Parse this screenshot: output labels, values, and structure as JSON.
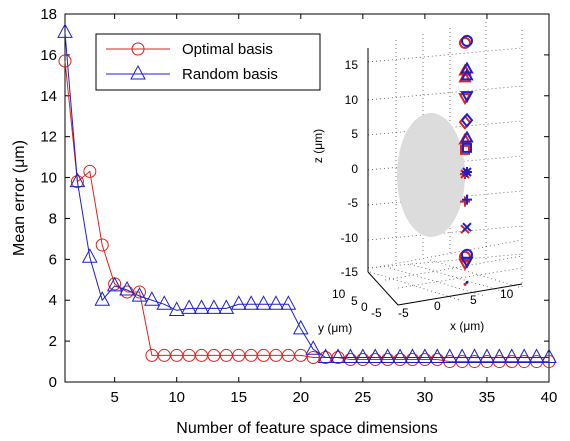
{
  "chart_data": {
    "type": "line",
    "xlabel": "Number of feature space dimensions",
    "ylabel": "Mean error (μm)",
    "xlim": [
      1,
      40
    ],
    "ylim": [
      0,
      18
    ],
    "xticks": [
      5,
      10,
      15,
      20,
      25,
      30,
      35,
      40
    ],
    "yticks": [
      0,
      2,
      4,
      6,
      8,
      10,
      12,
      14,
      16,
      18
    ],
    "grid": false,
    "legend_position": "top-left",
    "series": [
      {
        "name": "Optimal basis",
        "color": "#e0201b",
        "marker": "circle",
        "x": [
          1,
          2,
          3,
          4,
          5,
          6,
          7,
          8,
          9,
          10,
          11,
          12,
          13,
          14,
          15,
          16,
          17,
          18,
          19,
          20,
          21,
          22,
          23,
          24,
          25,
          26,
          27,
          28,
          29,
          30,
          31,
          32,
          33,
          34,
          35,
          36,
          37,
          38,
          39,
          40
        ],
        "values": [
          15.7,
          9.8,
          10.3,
          6.7,
          4.8,
          4.4,
          4.4,
          1.3,
          1.3,
          1.3,
          1.3,
          1.3,
          1.3,
          1.3,
          1.3,
          1.3,
          1.3,
          1.3,
          1.3,
          1.3,
          1.2,
          1.2,
          1.2,
          1.1,
          1.1,
          1.1,
          1.1,
          1.1,
          1.1,
          1.1,
          1.1,
          1.0,
          1.0,
          1.0,
          1.0,
          1.0,
          1.0,
          1.0,
          1.0,
          1.0
        ]
      },
      {
        "name": "Random basis",
        "color": "#1f1fc8",
        "marker": "triangle",
        "x": [
          1,
          2,
          3,
          4,
          5,
          6,
          7,
          8,
          9,
          10,
          11,
          12,
          13,
          14,
          15,
          16,
          17,
          18,
          19,
          20,
          21,
          22,
          23,
          24,
          25,
          26,
          27,
          28,
          29,
          30,
          31,
          32,
          33,
          34,
          35,
          36,
          37,
          38,
          39,
          40
        ],
        "values": [
          17.1,
          9.8,
          6.1,
          4.0,
          4.7,
          4.5,
          4.2,
          4.0,
          3.8,
          3.5,
          3.6,
          3.6,
          3.6,
          3.6,
          3.8,
          3.8,
          3.8,
          3.8,
          3.8,
          2.6,
          1.6,
          1.2,
          1.2,
          1.2,
          1.2,
          1.2,
          1.2,
          1.2,
          1.2,
          1.2,
          1.2,
          1.2,
          1.2,
          1.2,
          1.2,
          1.2,
          1.2,
          1.2,
          1.2,
          1.2
        ]
      }
    ],
    "inset": {
      "type": "3d-scatter",
      "z_label": "z (μm)",
      "y_label": "y (μm)",
      "x_label": "x (μm)",
      "z_ticks": [
        15,
        10,
        5,
        0,
        -5,
        -10,
        -15
      ],
      "y_ticks": [
        10,
        5,
        0,
        -5
      ],
      "x_ticks": [
        -5,
        0,
        5,
        10
      ],
      "markers": [
        {
          "symbol": "o",
          "z": 19
        },
        {
          "symbol": "triangle-up",
          "z": 15
        },
        {
          "symbol": "triangle-up",
          "z": 14
        },
        {
          "symbol": "triangle-down",
          "z": 11
        },
        {
          "symbol": "diamond",
          "z": 7.5
        },
        {
          "symbol": "triangle-up",
          "z": 5
        },
        {
          "symbol": "square",
          "z": 3.5
        },
        {
          "symbol": "asterisk",
          "z": 0
        },
        {
          "symbol": "plus",
          "z": -4
        },
        {
          "symbol": "x",
          "z": -8
        },
        {
          "symbol": "o",
          "z": -12
        },
        {
          "symbol": "triangle-down",
          "z": -13
        },
        {
          "symbol": "point",
          "z": -16
        }
      ]
    }
  }
}
